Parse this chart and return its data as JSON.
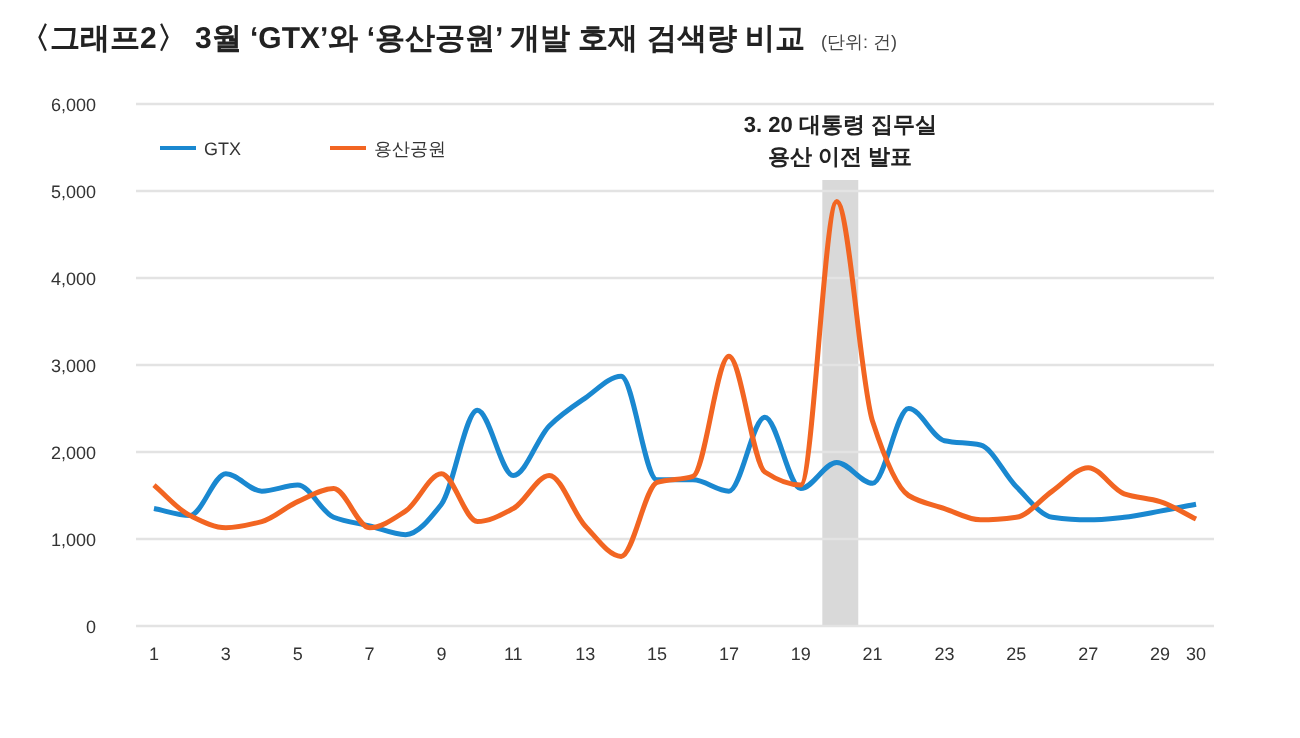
{
  "chart_data": {
    "type": "line",
    "title": "〈그래프2〉 3월 ‘GTX’와 ‘용산공원’ 개발 호재 검색량 비교",
    "subtitle": "(단위: 건)",
    "x": [
      1,
      2,
      3,
      4,
      5,
      6,
      7,
      8,
      9,
      10,
      11,
      12,
      13,
      14,
      15,
      16,
      17,
      18,
      19,
      20,
      21,
      22,
      23,
      24,
      25,
      26,
      27,
      28,
      29,
      30
    ],
    "series": [
      {
        "name": "GTX",
        "color": "#1a88d0",
        "values": [
          1350,
          1270,
          1750,
          1550,
          1620,
          1250,
          1150,
          1050,
          1400,
          2480,
          1730,
          2300,
          2620,
          2870,
          1680,
          1680,
          1550,
          2400,
          1580,
          1880,
          1640,
          2500,
          2130,
          2080,
          1600,
          1250,
          1220,
          1250,
          1320,
          1400
        ]
      },
      {
        "name": "용산공원",
        "color": "#f26522",
        "values": [
          1620,
          1270,
          1130,
          1200,
          1430,
          1580,
          1130,
          1320,
          1750,
          1200,
          1350,
          1730,
          1150,
          800,
          1650,
          1720,
          3100,
          1770,
          1620,
          4880,
          2350,
          1500,
          1350,
          1220,
          1250,
          1550,
          1820,
          1520,
          1430,
          1230
        ]
      }
    ],
    "xlim": [
      0.5,
      30.5
    ],
    "xticks": [
      1,
      3,
      5,
      7,
      9,
      11,
      13,
      15,
      17,
      19,
      21,
      23,
      25,
      27,
      29,
      30
    ],
    "ylim": [
      0,
      6000
    ],
    "yticks": [
      0,
      {
        "value": 1000,
        "label": "1,000"
      },
      {
        "value": 2000,
        "label": "2,000"
      },
      {
        "value": 3000,
        "label": "3,000"
      },
      {
        "value": 4000,
        "label": "4,000"
      },
      {
        "value": 5000,
        "label": "5,000"
      },
      {
        "value": 6000,
        "label": "6,000"
      }
    ],
    "bands": [
      {
        "axis": "x",
        "from": 19.6,
        "to": 20.6,
        "label": "3. 20 대통령 집무실\n용산 이전 발표",
        "color": "#d9d9d9"
      }
    ],
    "grid": "y",
    "legend": "top left",
    "marker": "none",
    "line_style": "solid"
  }
}
